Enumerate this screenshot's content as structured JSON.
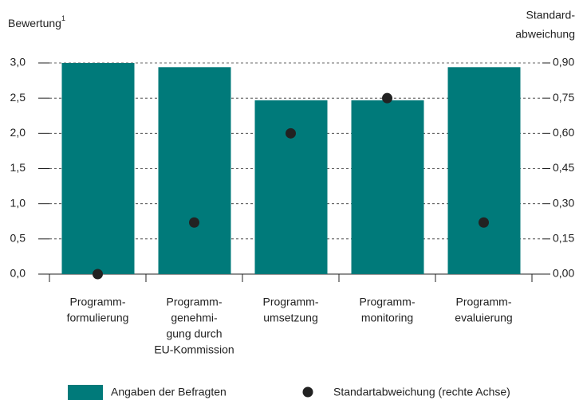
{
  "chart_data": {
    "type": "bar",
    "y_label": "Bewertung",
    "y_label_note": "1",
    "y2_label": [
      "Standard-",
      "abweichung"
    ],
    "categories": [
      [
        "Programm-",
        "formulierung"
      ],
      [
        "Programm-",
        "genehmi-",
        "gung durch",
        "EU-Kommission"
      ],
      [
        "Programm-",
        "umsetzung"
      ],
      [
        "Programm-",
        "monitoring"
      ],
      [
        "Programm-",
        "evaluierung"
      ]
    ],
    "series": [
      {
        "name": "Angaben der Befragten",
        "type": "bar",
        "color": "#007a7a",
        "values": [
          3.0,
          2.94,
          2.47,
          2.47,
          2.94
        ]
      },
      {
        "name": "Standartabweichung (rechte Achse)",
        "type": "dot",
        "axis": "y2",
        "color": "#222222",
        "values": [
          0.0,
          0.22,
          0.6,
          0.75,
          0.22
        ]
      }
    ],
    "ylim": [
      0,
      3.0
    ],
    "yticks": [
      {
        "value": 0,
        "label": "0,0"
      },
      {
        "value": 0.5,
        "label": "0,5"
      },
      {
        "value": 1.0,
        "label": "1,0"
      },
      {
        "value": 1.5,
        "label": "1,5"
      },
      {
        "value": 2.0,
        "label": "2,0"
      },
      {
        "value": 2.5,
        "label": "2,5"
      },
      {
        "value": 3.0,
        "label": "3,0"
      }
    ],
    "y2lim": [
      0,
      0.9
    ],
    "y2ticks": [
      {
        "value": 0,
        "label": "0,00"
      },
      {
        "value": 0.15,
        "label": "0,15"
      },
      {
        "value": 0.3,
        "label": "0,30"
      },
      {
        "value": 0.45,
        "label": "0,45"
      },
      {
        "value": 0.6,
        "label": "0,60"
      },
      {
        "value": 0.75,
        "label": "0,75"
      },
      {
        "value": 0.9,
        "label": "0,90"
      }
    ],
    "grid": true
  }
}
